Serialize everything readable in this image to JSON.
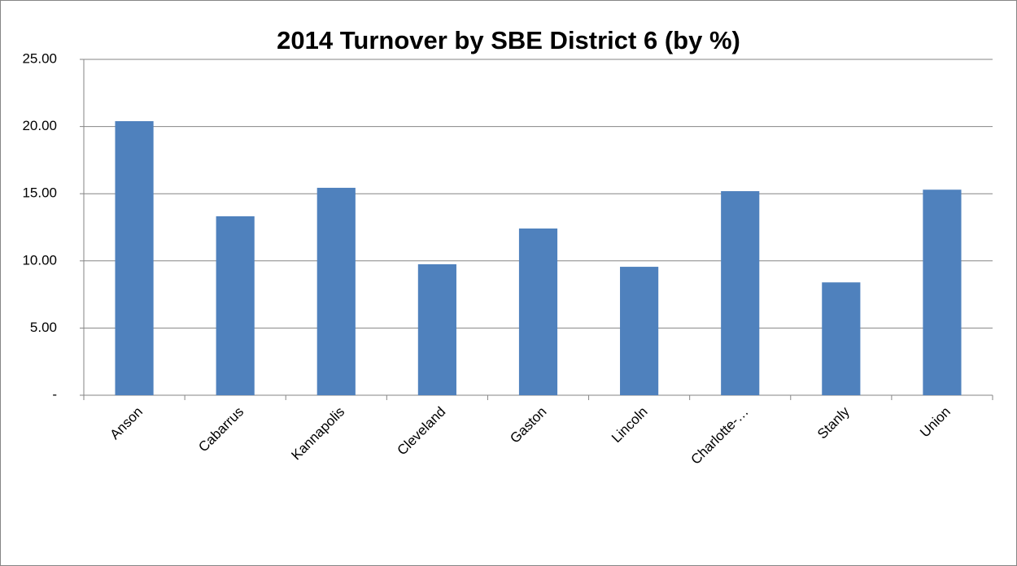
{
  "chart_data": {
    "type": "bar",
    "title": "2014 Turnover by SBE District 6 (by %)",
    "categories": [
      "Anson",
      "Cabarrus",
      "Kannapolis",
      "Cleveland",
      "Gaston",
      "Lincoln",
      "Charlotte-…",
      "Stanly",
      "Union"
    ],
    "values": [
      20.4,
      13.32,
      15.44,
      9.75,
      12.41,
      9.56,
      15.19,
      8.4,
      15.3
    ],
    "color": "#4f81bd",
    "ylim": [
      0,
      25
    ],
    "yticks": [
      {
        "value": 0,
        "label": "-"
      },
      {
        "value": 5,
        "label": "5.00"
      },
      {
        "value": 10,
        "label": "10.00"
      },
      {
        "value": 15,
        "label": "15.00"
      },
      {
        "value": 20,
        "label": "20.00"
      },
      {
        "value": 25,
        "label": "25.00"
      }
    ],
    "grid": true
  }
}
